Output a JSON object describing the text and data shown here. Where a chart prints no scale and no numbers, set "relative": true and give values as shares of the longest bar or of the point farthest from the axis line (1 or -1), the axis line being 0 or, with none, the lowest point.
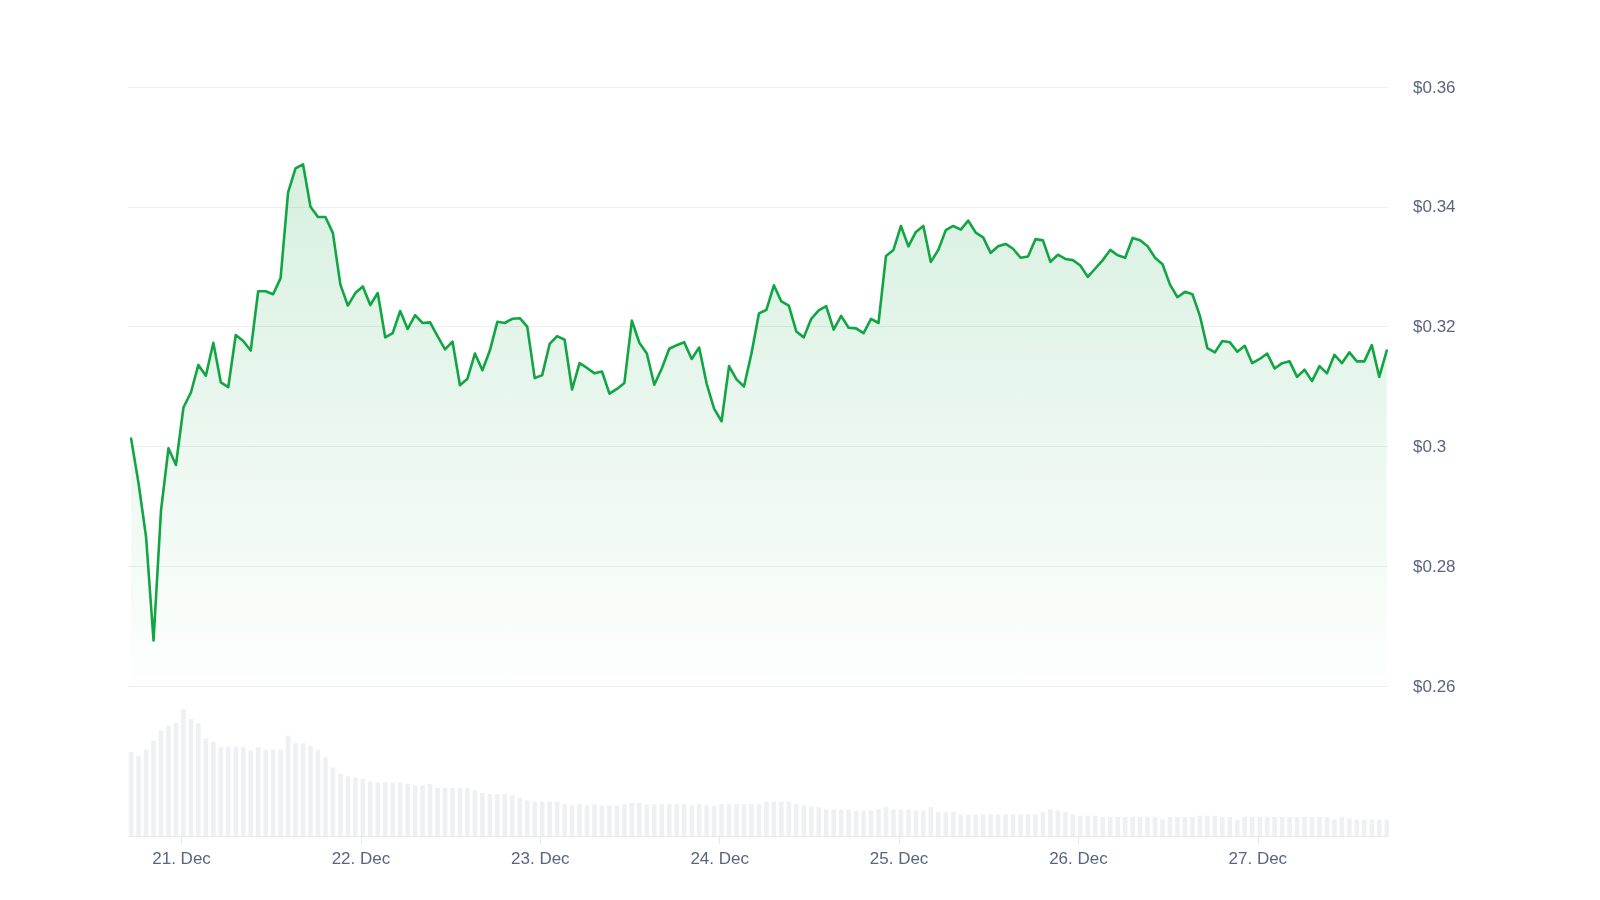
{
  "chart_data": [
    {
      "type": "area",
      "color": "#12a544",
      "grid": "y",
      "tick_labels": "y",
      "xlim": [
        "--12-20T16:50",
        "--12-27T17:25"
      ],
      "ylim": [
        0.26,
        0.36
      ],
      "yticks": [
        {
          "value": 0.26,
          "label": "$0.26"
        },
        {
          "value": 0.28,
          "label": "$0.28"
        },
        {
          "value": 0.3,
          "label": "$0.3"
        },
        {
          "value": 0.32,
          "label": "$0.32"
        },
        {
          "value": 0.34,
          "label": "$0.34"
        },
        {
          "value": 0.36,
          "label": "$0.36"
        }
      ],
      "x": [
        "--12-20T17:15",
        "--12-20T18:15",
        "--12-20T19:15",
        "--12-20T20:15",
        "--12-20T21:15",
        "--12-20T22:15",
        "--12-20T23:15",
        "--12-21T00:15",
        "--12-21T01:15",
        "--12-21T02:15",
        "--12-21T03:15",
        "--12-21T04:15",
        "--12-21T05:15",
        "--12-21T06:15",
        "--12-21T07:15",
        "--12-21T08:15",
        "--12-21T09:15",
        "--12-21T10:15",
        "--12-21T11:15",
        "--12-21T12:15",
        "--12-21T13:15",
        "--12-21T14:15",
        "--12-21T15:15",
        "--12-21T16:15",
        "--12-21T17:15",
        "--12-21T18:15",
        "--12-21T19:15",
        "--12-21T20:15",
        "--12-21T21:15",
        "--12-21T22:15",
        "--12-21T23:15",
        "--12-22T00:15",
        "--12-22T01:15",
        "--12-22T02:15",
        "--12-22T03:15",
        "--12-22T04:15",
        "--12-22T05:15",
        "--12-22T06:15",
        "--12-22T07:15",
        "--12-22T08:15",
        "--12-22T09:15",
        "--12-22T10:15",
        "--12-22T11:15",
        "--12-22T12:15",
        "--12-22T13:15",
        "--12-22T14:15",
        "--12-22T15:15",
        "--12-22T16:15",
        "--12-22T17:15",
        "--12-22T18:15",
        "--12-22T19:15",
        "--12-22T20:15",
        "--12-22T21:15",
        "--12-22T22:15",
        "--12-22T23:15",
        "--12-23T00:15",
        "--12-23T01:15",
        "--12-23T02:15",
        "--12-23T03:15",
        "--12-23T04:15",
        "--12-23T05:15",
        "--12-23T06:15",
        "--12-23T07:15",
        "--12-23T08:15",
        "--12-23T09:15",
        "--12-23T10:15",
        "--12-23T11:15",
        "--12-23T12:15",
        "--12-23T13:15",
        "--12-23T14:15",
        "--12-23T15:15",
        "--12-23T16:15",
        "--12-23T17:15",
        "--12-23T18:15",
        "--12-23T19:15",
        "--12-23T20:15",
        "--12-23T21:15",
        "--12-23T22:15",
        "--12-23T23:15",
        "--12-24T00:15",
        "--12-24T01:15",
        "--12-24T02:15",
        "--12-24T03:15",
        "--12-24T04:15",
        "--12-24T05:15",
        "--12-24T06:15",
        "--12-24T07:15",
        "--12-24T08:15",
        "--12-24T09:15",
        "--12-24T10:15",
        "--12-24T11:15",
        "--12-24T12:15",
        "--12-24T13:15",
        "--12-24T14:15",
        "--12-24T15:15",
        "--12-24T16:15",
        "--12-24T17:15",
        "--12-24T18:15",
        "--12-24T19:15",
        "--12-24T20:15",
        "--12-24T21:15",
        "--12-24T22:15",
        "--12-24T23:15",
        "--12-25T00:15",
        "--12-25T01:15",
        "--12-25T02:15",
        "--12-25T03:15",
        "--12-25T04:15",
        "--12-25T05:15",
        "--12-25T06:15",
        "--12-25T07:15",
        "--12-25T08:15",
        "--12-25T09:15",
        "--12-25T10:15",
        "--12-25T11:15",
        "--12-25T12:15",
        "--12-25T13:15",
        "--12-25T14:15",
        "--12-25T15:15",
        "--12-25T16:15",
        "--12-25T17:15",
        "--12-25T18:15",
        "--12-25T19:15",
        "--12-25T20:15",
        "--12-25T21:15",
        "--12-25T22:15",
        "--12-25T23:15",
        "--12-26T00:15",
        "--12-26T01:15",
        "--12-26T02:15",
        "--12-26T03:15",
        "--12-26T04:15",
        "--12-26T05:15",
        "--12-26T06:15",
        "--12-26T07:15",
        "--12-26T08:15",
        "--12-26T09:15",
        "--12-26T10:15",
        "--12-26T11:15",
        "--12-26T12:15",
        "--12-26T13:15",
        "--12-26T14:15",
        "--12-26T15:15",
        "--12-26T16:15",
        "--12-26T17:15",
        "--12-26T18:15",
        "--12-26T19:15",
        "--12-26T20:15",
        "--12-26T21:15",
        "--12-26T22:15",
        "--12-26T23:15",
        "--12-27T00:15",
        "--12-27T01:15",
        "--12-27T02:15",
        "--12-27T03:15",
        "--12-27T04:15",
        "--12-27T05:15",
        "--12-27T06:15",
        "--12-27T07:15",
        "--12-27T08:15",
        "--12-27T09:15",
        "--12-27T10:15",
        "--12-27T11:15",
        "--12-27T12:15",
        "--12-27T13:15",
        "--12-27T14:15",
        "--12-27T15:15",
        "--12-27T16:15",
        "--12-27T17:15"
      ],
      "values": [
        0.3013,
        0.2938,
        0.2849,
        0.2676,
        0.2893,
        0.2997,
        0.2969,
        0.3065,
        0.309,
        0.3136,
        0.3118,
        0.3173,
        0.3107,
        0.3099,
        0.3186,
        0.3176,
        0.316,
        0.3259,
        0.3259,
        0.3254,
        0.3281,
        0.3424,
        0.3464,
        0.3471,
        0.34,
        0.3383,
        0.3383,
        0.3356,
        0.327,
        0.3235,
        0.3256,
        0.3267,
        0.3236,
        0.3256,
        0.3182,
        0.3189,
        0.3226,
        0.3196,
        0.3219,
        0.3206,
        0.3207,
        0.3184,
        0.3162,
        0.3175,
        0.3102,
        0.3113,
        0.3155,
        0.3127,
        0.316,
        0.3208,
        0.3206,
        0.3213,
        0.3214,
        0.32,
        0.3114,
        0.3119,
        0.3171,
        0.3184,
        0.3178,
        0.3095,
        0.3139,
        0.3131,
        0.3122,
        0.3125,
        0.3088,
        0.3096,
        0.3106,
        0.321,
        0.3173,
        0.3155,
        0.3103,
        0.313,
        0.3163,
        0.3169,
        0.3174,
        0.3146,
        0.3165,
        0.3105,
        0.3063,
        0.3042,
        0.3134,
        0.3112,
        0.31,
        0.3155,
        0.3222,
        0.3228,
        0.3269,
        0.3242,
        0.3235,
        0.3192,
        0.3182,
        0.3213,
        0.3227,
        0.3234,
        0.3195,
        0.3218,
        0.3198,
        0.3197,
        0.3189,
        0.3213,
        0.3206,
        0.3318,
        0.3328,
        0.3368,
        0.3334,
        0.3358,
        0.3368,
        0.3308,
        0.3328,
        0.3361,
        0.3368,
        0.3362,
        0.3377,
        0.3357,
        0.3349,
        0.3323,
        0.3334,
        0.3338,
        0.333,
        0.3315,
        0.3317,
        0.3346,
        0.3344,
        0.3308,
        0.332,
        0.3313,
        0.3311,
        0.3302,
        0.3283,
        0.3297,
        0.3311,
        0.3328,
        0.3319,
        0.3315,
        0.3348,
        0.3344,
        0.3334,
        0.3315,
        0.3304,
        0.327,
        0.3249,
        0.3258,
        0.3254,
        0.3218,
        0.3164,
        0.3157,
        0.3176,
        0.3174,
        0.3158,
        0.3168,
        0.3139,
        0.3146,
        0.3155,
        0.313,
        0.3139,
        0.3142,
        0.3116,
        0.3128,
        0.3109,
        0.3134,
        0.3122,
        0.3153,
        0.3139,
        0.3157,
        0.3142,
        0.3142,
        0.3169,
        0.3116,
        0.316
      ]
    },
    {
      "type": "bar",
      "relative": true,
      "color": "#eef0f4",
      "xlim": [
        "--12-20T16:50",
        "--12-27T17:25"
      ],
      "xticks": [
        {
          "value": "--12-21",
          "label": "21. Dec"
        },
        {
          "value": "--12-22",
          "label": "22. Dec"
        },
        {
          "value": "--12-23",
          "label": "23. Dec"
        },
        {
          "value": "--12-24",
          "label": "24. Dec"
        },
        {
          "value": "--12-25",
          "label": "25. Dec"
        },
        {
          "value": "--12-26",
          "label": "26. Dec"
        },
        {
          "value": "--12-27",
          "label": "27. Dec"
        }
      ],
      "x": [
        "--12-20T17:15",
        "--12-20T18:15",
        "--12-20T19:15",
        "--12-20T20:15",
        "--12-20T21:15",
        "--12-20T22:15",
        "--12-20T23:15",
        "--12-21T00:15",
        "--12-21T01:15",
        "--12-21T02:15",
        "--12-21T03:15",
        "--12-21T04:15",
        "--12-21T05:15",
        "--12-21T06:15",
        "--12-21T07:15",
        "--12-21T08:15",
        "--12-21T09:15",
        "--12-21T10:15",
        "--12-21T11:15",
        "--12-21T12:15",
        "--12-21T13:15",
        "--12-21T14:15",
        "--12-21T15:15",
        "--12-21T16:15",
        "--12-21T17:15",
        "--12-21T18:15",
        "--12-21T19:15",
        "--12-21T20:15",
        "--12-21T21:15",
        "--12-21T22:15",
        "--12-21T23:15",
        "--12-22T00:15",
        "--12-22T01:15",
        "--12-22T02:15",
        "--12-22T03:15",
        "--12-22T04:15",
        "--12-22T05:15",
        "--12-22T06:15",
        "--12-22T07:15",
        "--12-22T08:15",
        "--12-22T09:15",
        "--12-22T10:15",
        "--12-22T11:15",
        "--12-22T12:15",
        "--12-22T13:15",
        "--12-22T14:15",
        "--12-22T15:15",
        "--12-22T16:15",
        "--12-22T17:15",
        "--12-22T18:15",
        "--12-22T19:15",
        "--12-22T20:15",
        "--12-22T21:15",
        "--12-22T22:15",
        "--12-22T23:15",
        "--12-23T00:15",
        "--12-23T01:15",
        "--12-23T02:15",
        "--12-23T03:15",
        "--12-23T04:15",
        "--12-23T05:15",
        "--12-23T06:15",
        "--12-23T07:15",
        "--12-23T08:15",
        "--12-23T09:15",
        "--12-23T10:15",
        "--12-23T11:15",
        "--12-23T12:15",
        "--12-23T13:15",
        "--12-23T14:15",
        "--12-23T15:15",
        "--12-23T16:15",
        "--12-23T17:15",
        "--12-23T18:15",
        "--12-23T19:15",
        "--12-23T20:15",
        "--12-23T21:15",
        "--12-23T22:15",
        "--12-23T23:15",
        "--12-24T00:15",
        "--12-24T01:15",
        "--12-24T02:15",
        "--12-24T03:15",
        "--12-24T04:15",
        "--12-24T05:15",
        "--12-24T06:15",
        "--12-24T07:15",
        "--12-24T08:15",
        "--12-24T09:15",
        "--12-24T10:15",
        "--12-24T11:15",
        "--12-24T12:15",
        "--12-24T13:15",
        "--12-24T14:15",
        "--12-24T15:15",
        "--12-24T16:15",
        "--12-24T17:15",
        "--12-24T18:15",
        "--12-24T19:15",
        "--12-24T20:15",
        "--12-24T21:15",
        "--12-24T22:15",
        "--12-24T23:15",
        "--12-25T00:15",
        "--12-25T01:15",
        "--12-25T02:15",
        "--12-25T03:15",
        "--12-25T04:15",
        "--12-25T05:15",
        "--12-25T06:15",
        "--12-25T07:15",
        "--12-25T08:15",
        "--12-25T09:15",
        "--12-25T10:15",
        "--12-25T11:15",
        "--12-25T12:15",
        "--12-25T13:15",
        "--12-25T14:15",
        "--12-25T15:15",
        "--12-25T16:15",
        "--12-25T17:15",
        "--12-25T18:15",
        "--12-25T19:15",
        "--12-25T20:15",
        "--12-25T21:15",
        "--12-25T22:15",
        "--12-25T23:15",
        "--12-26T00:15",
        "--12-26T01:15",
        "--12-26T02:15",
        "--12-26T03:15",
        "--12-26T04:15",
        "--12-26T05:15",
        "--12-26T06:15",
        "--12-26T07:15",
        "--12-26T08:15",
        "--12-26T09:15",
        "--12-26T10:15",
        "--12-26T11:15",
        "--12-26T12:15",
        "--12-26T13:15",
        "--12-26T14:15",
        "--12-26T15:15",
        "--12-26T16:15",
        "--12-26T17:15",
        "--12-26T18:15",
        "--12-26T19:15",
        "--12-26T20:15",
        "--12-26T21:15",
        "--12-26T22:15",
        "--12-26T23:15",
        "--12-27T00:15",
        "--12-27T01:15",
        "--12-27T02:15",
        "--12-27T03:15",
        "--12-27T04:15",
        "--12-27T05:15",
        "--12-27T06:15",
        "--12-27T07:15",
        "--12-27T08:15",
        "--12-27T09:15",
        "--12-27T10:15",
        "--12-27T11:15",
        "--12-27T12:15",
        "--12-27T13:15",
        "--12-27T14:15",
        "--12-27T15:15",
        "--12-27T16:15",
        "--12-27T17:15"
      ],
      "values": [
        0.66,
        0.63,
        0.68,
        0.75,
        0.83,
        0.87,
        0.89,
        1,
        0.92,
        0.89,
        0.77,
        0.74,
        0.7,
        0.7,
        0.7,
        0.7,
        0.67,
        0.7,
        0.68,
        0.68,
        0.68,
        0.79,
        0.73,
        0.73,
        0.71,
        0.68,
        0.62,
        0.54,
        0.49,
        0.47,
        0.46,
        0.45,
        0.43,
        0.42,
        0.42,
        0.42,
        0.42,
        0.41,
        0.4,
        0.4,
        0.41,
        0.38,
        0.38,
        0.38,
        0.38,
        0.38,
        0.36,
        0.34,
        0.33,
        0.33,
        0.33,
        0.32,
        0.3,
        0.28,
        0.27,
        0.27,
        0.27,
        0.27,
        0.25,
        0.24,
        0.25,
        0.24,
        0.25,
        0.24,
        0.24,
        0.24,
        0.25,
        0.26,
        0.26,
        0.25,
        0.25,
        0.25,
        0.25,
        0.25,
        0.25,
        0.24,
        0.25,
        0.24,
        0.24,
        0.25,
        0.25,
        0.25,
        0.25,
        0.25,
        0.25,
        0.27,
        0.27,
        0.27,
        0.27,
        0.25,
        0.24,
        0.23,
        0.23,
        0.21,
        0.21,
        0.21,
        0.21,
        0.2,
        0.2,
        0.2,
        0.21,
        0.23,
        0.21,
        0.21,
        0.21,
        0.2,
        0.2,
        0.23,
        0.19,
        0.19,
        0.19,
        0.17,
        0.17,
        0.17,
        0.17,
        0.17,
        0.17,
        0.17,
        0.17,
        0.17,
        0.17,
        0.17,
        0.19,
        0.21,
        0.2,
        0.19,
        0.17,
        0.16,
        0.16,
        0.16,
        0.15,
        0.15,
        0.15,
        0.15,
        0.15,
        0.15,
        0.15,
        0.15,
        0.13,
        0.15,
        0.15,
        0.15,
        0.15,
        0.16,
        0.16,
        0.16,
        0.15,
        0.15,
        0.13,
        0.15,
        0.15,
        0.15,
        0.15,
        0.15,
        0.15,
        0.15,
        0.15,
        0.15,
        0.15,
        0.15,
        0.15,
        0.13,
        0.15,
        0.14,
        0.13,
        0.13,
        0.13,
        0.13,
        0.13
      ]
    }
  ]
}
